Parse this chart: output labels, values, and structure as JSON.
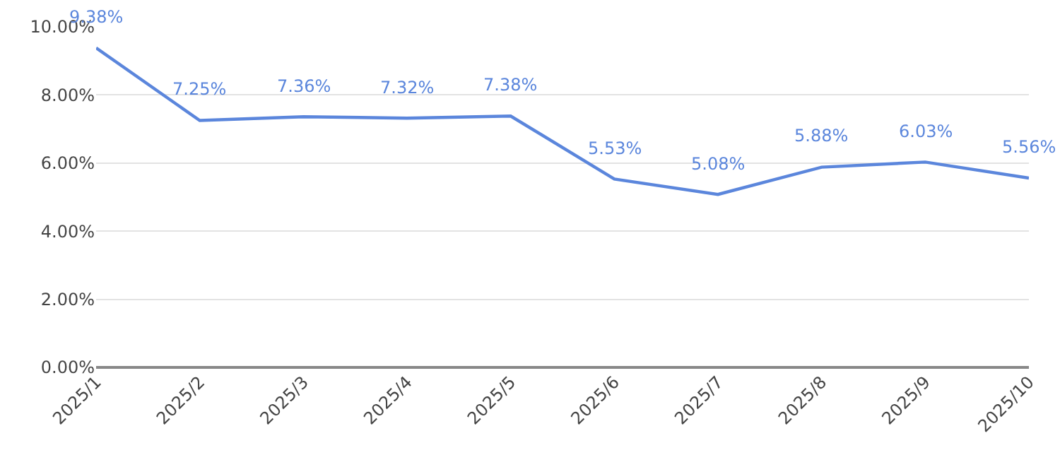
{
  "chart_data": {
    "type": "line",
    "categories": [
      "2025/1",
      "2025/2",
      "2025/3",
      "2025/4",
      "2025/5",
      "2025/6",
      "2025/7",
      "2025/8",
      "2025/9",
      "2025/10"
    ],
    "series": [
      {
        "color": "#5b86dc",
        "values": [
          9.38,
          7.25,
          7.36,
          7.32,
          7.38,
          5.53,
          5.08,
          5.88,
          6.03,
          5.56
        ],
        "value_labels": [
          "9.38%",
          "7.25%",
          "7.36%",
          "7.32%",
          "7.38%",
          "5.53%",
          "5.08%",
          "5.88%",
          "6.03%",
          "5.56%"
        ]
      }
    ],
    "ylim": [
      0,
      10
    ],
    "yticks": [
      {
        "value": 0,
        "label": "0.00%"
      },
      {
        "value": 2,
        "label": "2.00%"
      },
      {
        "value": 4,
        "label": "4.00%"
      },
      {
        "value": 6,
        "label": "6.00%"
      },
      {
        "value": 8,
        "label": "8.00%"
      },
      {
        "value": 10,
        "label": "10.00%"
      }
    ],
    "grid": "y",
    "marker": "none",
    "line_style": "solid",
    "legend": false
  }
}
